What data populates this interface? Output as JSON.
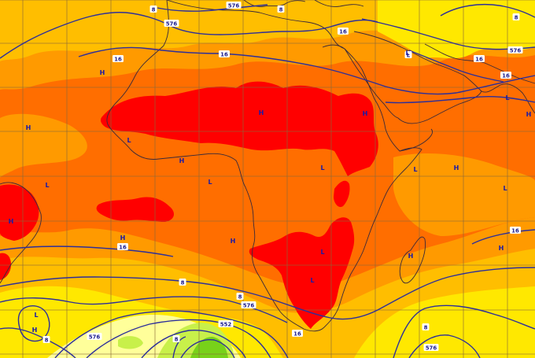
{
  "map": {
    "colors": {
      "yellow": "#ffe800",
      "light_orange": "#ffbe00",
      "orange": "#ff9a00",
      "dark_orange": "#ff6e00",
      "red": "#ff0000",
      "pale_yellow": "#ffff9a",
      "light_green": "#c8f04a",
      "green": "#78d21a",
      "isobar_blue": "#2d2f9a",
      "coastline": "#3a2a3a"
    },
    "pressure_centers": [
      {
        "type": "H"
      },
      {
        "type": "H"
      },
      {
        "type": "L"
      },
      {
        "type": "H"
      },
      {
        "type": "L"
      },
      {
        "type": "H"
      },
      {
        "type": "L"
      },
      {
        "type": "H"
      },
      {
        "type": "L"
      },
      {
        "type": "H"
      },
      {
        "type": "L"
      },
      {
        "type": "H"
      },
      {
        "type": "L"
      },
      {
        "type": "H"
      },
      {
        "type": "L"
      },
      {
        "type": "H"
      },
      {
        "type": "L"
      },
      {
        "type": "H"
      },
      {
        "type": "H"
      },
      {
        "type": "L"
      },
      {
        "type": "L"
      },
      {
        "type": "H"
      },
      {
        "type": "L"
      },
      {
        "type": "H"
      }
    ],
    "contour_labels": [
      "8",
      "576",
      "576",
      "8",
      "16",
      "16",
      "16",
      "L",
      "16",
      "576",
      "16",
      "8",
      "16",
      "16",
      "8",
      "576",
      "8",
      "576",
      "552",
      "8",
      "16",
      "8",
      "576",
      "8"
    ]
  }
}
